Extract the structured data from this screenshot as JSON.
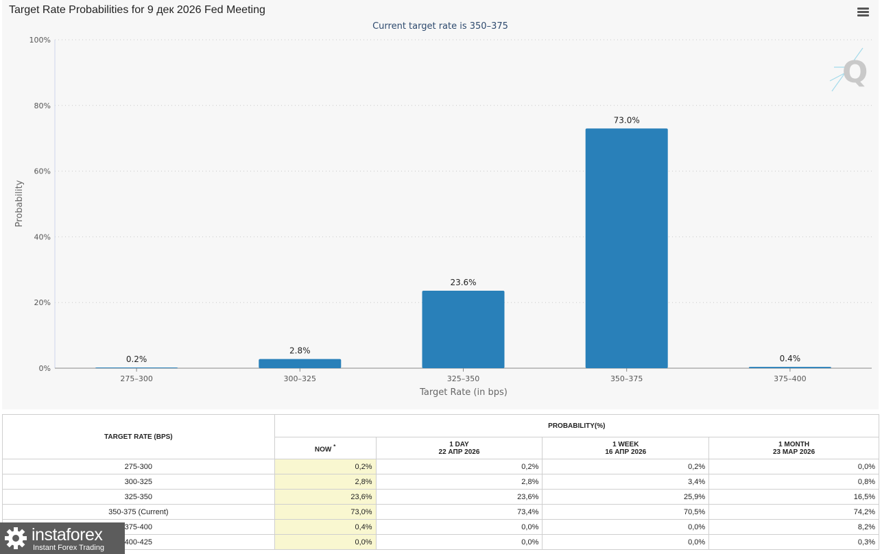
{
  "chart": {
    "title": "Target Rate Probabilities for 9 дек 2026 Fed Meeting",
    "subtitle": "Current target rate is 350–375"
  },
  "chart_data": {
    "type": "bar",
    "title": "Target Rate Probabilities for 9 дек 2026 Fed Meeting",
    "subtitle": "Current target rate is 350–375",
    "xlabel": "Target Rate (in bps)",
    "ylabel": "Probability",
    "categories": [
      "275–300",
      "300–325",
      "325–350",
      "350–375",
      "375–400"
    ],
    "values": [
      0.2,
      2.8,
      23.6,
      73.0,
      0.4
    ],
    "data_labels": [
      "0.2%",
      "2.8%",
      "23.6%",
      "73.0%",
      "0.4%"
    ],
    "ylim": [
      0,
      100
    ],
    "yticks": [
      0,
      20,
      40,
      60,
      80,
      100
    ],
    "ytick_labels": [
      "0%",
      "20%",
      "40%",
      "60%",
      "80%",
      "100%"
    ],
    "grid": true,
    "bar_color": "#2980b9"
  },
  "table": {
    "target_rate_header": "TARGET RATE (BPS)",
    "probability_header": "PROBABILITY(%)",
    "col_now": "NOW",
    "col_now_mark": "*",
    "col_1day": "1 DAY",
    "col_1day_date": "22 АПР 2026",
    "col_1week": "1 WEEK",
    "col_1week_date": "16 АПР 2026",
    "col_1month": "1 MONTH",
    "col_1month_date": "23 МАР 2026",
    "rows": [
      {
        "rate": "275-300",
        "now": "0,2%",
        "day": "0,2%",
        "week": "0,2%",
        "month": "0,0%"
      },
      {
        "rate": "300-325",
        "now": "2,8%",
        "day": "2,8%",
        "week": "3,4%",
        "month": "0,8%"
      },
      {
        "rate": "325-350",
        "now": "23,6%",
        "day": "23,6%",
        "week": "25,9%",
        "month": "16,5%"
      },
      {
        "rate": "350-375 (Current)",
        "now": "73,0%",
        "day": "73,4%",
        "week": "70,5%",
        "month": "74,2%"
      },
      {
        "rate": "375-400",
        "now": "0,4%",
        "day": "0,0%",
        "week": "0,0%",
        "month": "8,2%"
      },
      {
        "rate": "400-425",
        "now": "0,0%",
        "day": "0,0%",
        "week": "0,0%",
        "month": "0,3%"
      }
    ]
  },
  "logo": {
    "brand": "instaforex",
    "tagline": "Instant Forex Trading"
  },
  "icons": {
    "menu": "menu-icon",
    "watermark": "q-watermark-icon",
    "logo": "gear-logo-icon"
  }
}
